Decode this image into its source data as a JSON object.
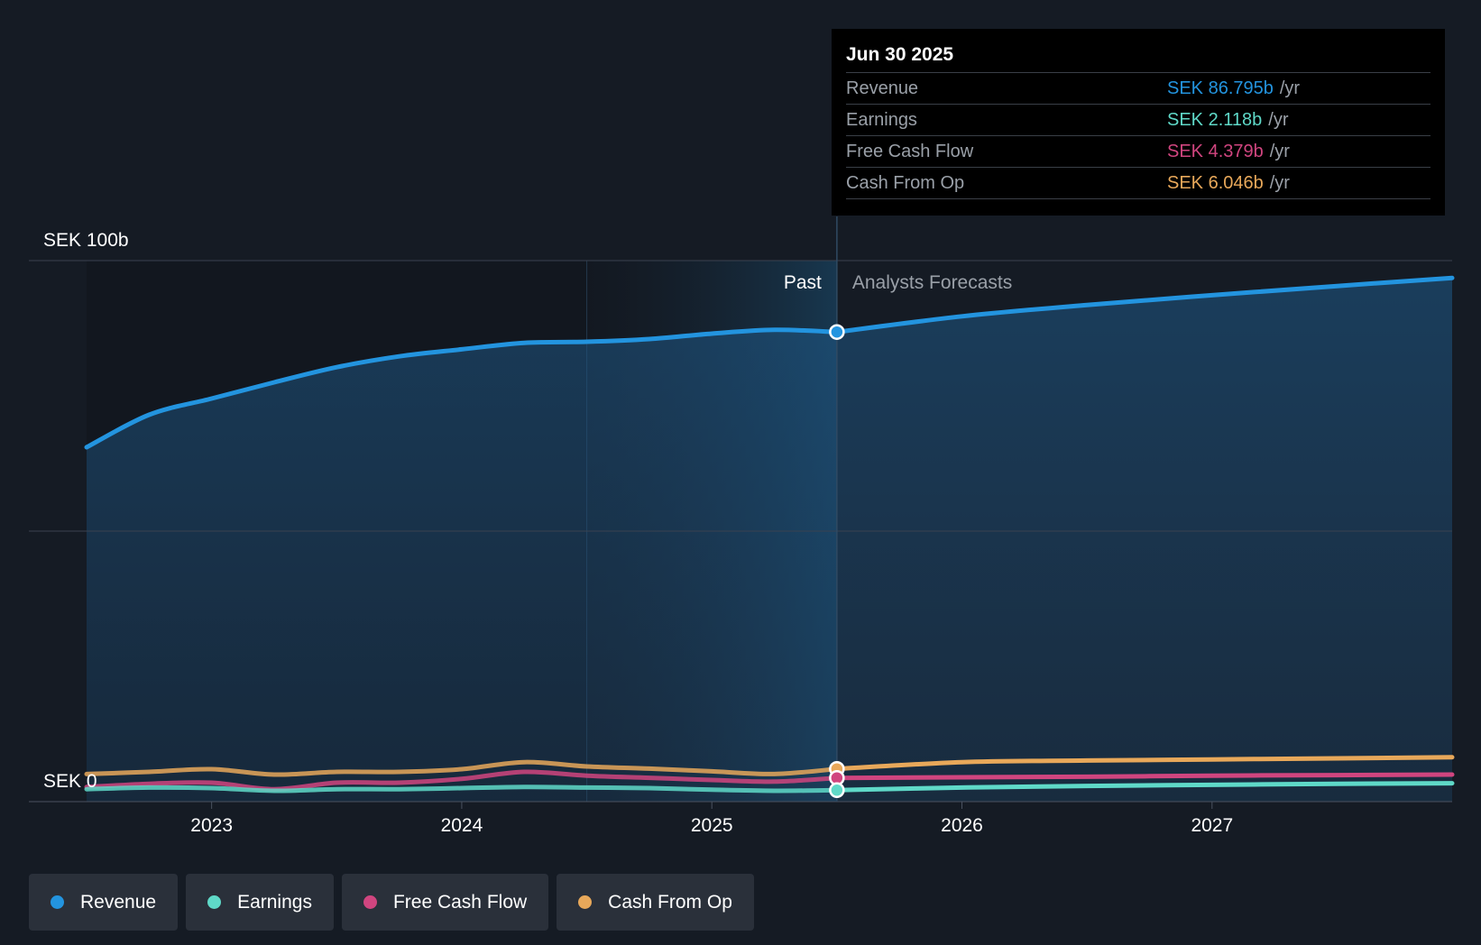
{
  "chart_data": {
    "type": "area",
    "y_label_top": "SEK 100b",
    "y_label_bottom": "SEK 0",
    "ylim": [
      0,
      100
    ],
    "xlim": [
      2022.5,
      2027.96
    ],
    "x_ticks": [
      2023,
      2024,
      2025,
      2026,
      2027
    ],
    "x_tick_labels": [
      "2023",
      "2024",
      "2025",
      "2026",
      "2027"
    ],
    "divider_x": 2025.5,
    "shade_start_x": 2024.5,
    "past_label": "Past",
    "forecast_label": "Analysts Forecasts",
    "series": [
      {
        "name": "Revenue",
        "color": "#2394df",
        "past": [
          [
            2022.5,
            65.5
          ],
          [
            2022.75,
            71.5
          ],
          [
            2023.0,
            74.5
          ],
          [
            2023.25,
            77.5
          ],
          [
            2023.5,
            80.3
          ],
          [
            2023.75,
            82.3
          ],
          [
            2024.0,
            83.6
          ],
          [
            2024.25,
            84.8
          ],
          [
            2024.5,
            85.0
          ],
          [
            2024.75,
            85.5
          ],
          [
            2025.0,
            86.5
          ],
          [
            2025.25,
            87.2
          ],
          [
            2025.5,
            86.795
          ]
        ],
        "forecast": [
          [
            2025.5,
            86.795
          ],
          [
            2026.0,
            89.7
          ],
          [
            2026.5,
            91.8
          ],
          [
            2027.0,
            93.6
          ],
          [
            2027.5,
            95.3
          ],
          [
            2027.96,
            96.8
          ]
        ]
      },
      {
        "name": "Earnings",
        "color": "#5fd9c8",
        "past": [
          [
            2022.5,
            2.3
          ],
          [
            2022.75,
            2.6
          ],
          [
            2023.0,
            2.5
          ],
          [
            2023.25,
            2.0
          ],
          [
            2023.5,
            2.3
          ],
          [
            2023.75,
            2.3
          ],
          [
            2024.0,
            2.5
          ],
          [
            2024.25,
            2.7
          ],
          [
            2024.5,
            2.6
          ],
          [
            2024.75,
            2.5
          ],
          [
            2025.0,
            2.2
          ],
          [
            2025.25,
            2.0
          ],
          [
            2025.5,
            2.118
          ]
        ],
        "forecast": [
          [
            2025.5,
            2.118
          ],
          [
            2026.0,
            2.6
          ],
          [
            2026.5,
            2.9
          ],
          [
            2027.0,
            3.1
          ],
          [
            2027.5,
            3.3
          ],
          [
            2027.96,
            3.4
          ]
        ]
      },
      {
        "name": "Free Cash Flow",
        "color": "#d0457f",
        "past": [
          [
            2022.5,
            2.7
          ],
          [
            2022.75,
            3.3
          ],
          [
            2023.0,
            3.5
          ],
          [
            2023.25,
            2.3
          ],
          [
            2023.5,
            3.5
          ],
          [
            2023.75,
            3.5
          ],
          [
            2024.0,
            4.2
          ],
          [
            2024.25,
            5.5
          ],
          [
            2024.5,
            4.8
          ],
          [
            2024.75,
            4.4
          ],
          [
            2025.0,
            4.0
          ],
          [
            2025.25,
            3.7
          ],
          [
            2025.5,
            4.379
          ]
        ],
        "forecast": [
          [
            2025.5,
            4.379
          ],
          [
            2026.0,
            4.5
          ],
          [
            2026.5,
            4.6
          ],
          [
            2027.0,
            4.8
          ],
          [
            2027.5,
            4.9
          ],
          [
            2027.96,
            5.0
          ]
        ]
      },
      {
        "name": "Cash From Op",
        "color": "#e8a85a",
        "past": [
          [
            2022.5,
            5.1
          ],
          [
            2022.75,
            5.5
          ],
          [
            2023.0,
            6.0
          ],
          [
            2023.25,
            5.0
          ],
          [
            2023.5,
            5.5
          ],
          [
            2023.75,
            5.5
          ],
          [
            2024.0,
            6.0
          ],
          [
            2024.25,
            7.3
          ],
          [
            2024.5,
            6.5
          ],
          [
            2024.75,
            6.1
          ],
          [
            2025.0,
            5.6
          ],
          [
            2025.25,
            5.1
          ],
          [
            2025.5,
            6.046
          ]
        ],
        "forecast": [
          [
            2025.5,
            6.046
          ],
          [
            2026.0,
            7.3
          ],
          [
            2026.5,
            7.6
          ],
          [
            2027.0,
            7.8
          ],
          [
            2027.5,
            8.0
          ],
          [
            2027.96,
            8.2
          ]
        ]
      }
    ]
  },
  "tooltip": {
    "date": "Jun 30 2025",
    "rows": [
      {
        "label": "Revenue",
        "value": "SEK 86.795b",
        "unit": "/yr",
        "color": "#2394df"
      },
      {
        "label": "Earnings",
        "value": "SEK 2.118b",
        "unit": "/yr",
        "color": "#5fd9c8"
      },
      {
        "label": "Free Cash Flow",
        "value": "SEK 4.379b",
        "unit": "/yr",
        "color": "#d0457f"
      },
      {
        "label": "Cash From Op",
        "value": "SEK 6.046b",
        "unit": "/yr",
        "color": "#e8a85a"
      }
    ]
  },
  "legend": [
    {
      "label": "Revenue",
      "color": "#2394df"
    },
    {
      "label": "Earnings",
      "color": "#5fd9c8"
    },
    {
      "label": "Free Cash Flow",
      "color": "#d0457f"
    },
    {
      "label": "Cash From Op",
      "color": "#e8a85a"
    }
  ]
}
